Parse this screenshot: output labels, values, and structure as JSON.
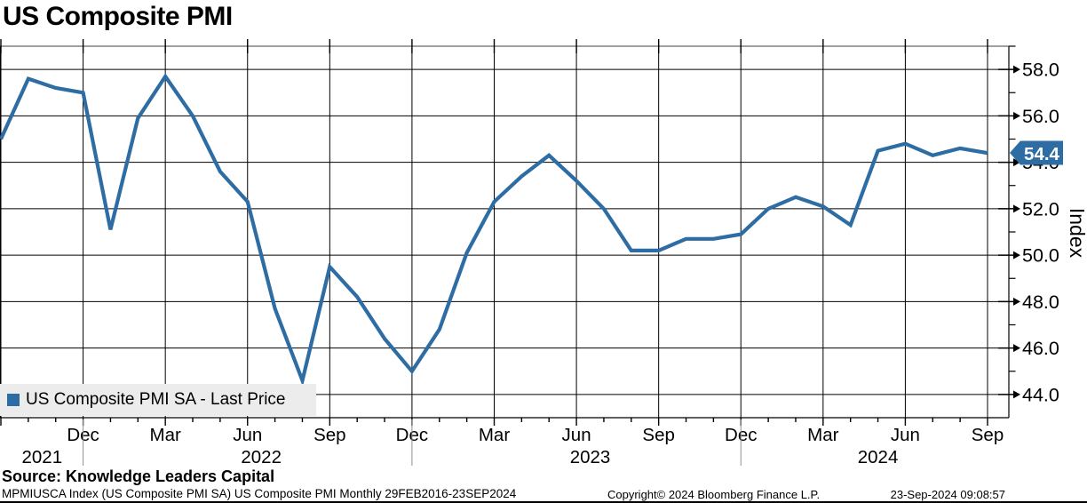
{
  "title": "US Composite PMI",
  "legend": {
    "label": "US Composite PMI SA - Last Price"
  },
  "y_axis": {
    "title": "Index",
    "tick_labels": [
      "58.0",
      "56.0",
      "54.0",
      "52.0",
      "50.0",
      "48.0",
      "46.0",
      "44.0"
    ],
    "last_price_badge": "54.4"
  },
  "x_axis": {
    "quarter_labels": [
      {
        "month_index": 3,
        "label": "Dec"
      },
      {
        "month_index": 6,
        "label": "Mar"
      },
      {
        "month_index": 9,
        "label": "Jun"
      },
      {
        "month_index": 12,
        "label": "Sep"
      },
      {
        "month_index": 15,
        "label": "Dec"
      },
      {
        "month_index": 18,
        "label": "Mar"
      },
      {
        "month_index": 21,
        "label": "Jun"
      },
      {
        "month_index": 24,
        "label": "Sep"
      },
      {
        "month_index": 27,
        "label": "Dec"
      },
      {
        "month_index": 30,
        "label": "Mar"
      },
      {
        "month_index": 33,
        "label": "Jun"
      },
      {
        "month_index": 36,
        "label": "Sep"
      }
    ],
    "year_labels": [
      {
        "center_month_index": 1.5,
        "label": "2021"
      },
      {
        "center_month_index": 9.5,
        "label": "2022"
      },
      {
        "center_month_index": 21.5,
        "label": "2023"
      },
      {
        "center_month_index": 32,
        "label": "2024"
      }
    ]
  },
  "footer": {
    "source": "Source: Knowledge Leaders Capital",
    "description": "MPMIUSCA Index (US Composite PMI SA) US Composite PMI  Monthly 29FEB2016-23SEP2024",
    "copyright": "Copyright© 2024 Bloomberg Finance L.P.",
    "timestamp": "23-Sep-2024 09:08:57"
  },
  "colors": {
    "line": "#2d6da4",
    "badge_bg": "#2d6da4",
    "badge_text": "#ffffff",
    "legend_bg": "#ececec",
    "grid": "#000000",
    "year_separator": "#909090"
  },
  "chart_data": {
    "type": "line",
    "title": "US Composite PMI",
    "xlabel": "",
    "ylabel": "Index",
    "ylim": [
      43,
      59
    ],
    "yticks": [
      44,
      46,
      48,
      50,
      52,
      54,
      56,
      58
    ],
    "grid": true,
    "legend_position": "bottom-left",
    "x": [
      "Sep 2021",
      "Oct 2021",
      "Nov 2021",
      "Dec 2021",
      "Jan 2022",
      "Feb 2022",
      "Mar 2022",
      "Apr 2022",
      "May 2022",
      "Jun 2022",
      "Jul 2022",
      "Aug 2022",
      "Sep 2022",
      "Oct 2022",
      "Nov 2022",
      "Dec 2022",
      "Jan 2023",
      "Feb 2023",
      "Mar 2023",
      "Apr 2023",
      "May 2023",
      "Jun 2023",
      "Jul 2023",
      "Aug 2023",
      "Sep 2023",
      "Oct 2023",
      "Nov 2023",
      "Dec 2023",
      "Jan 2024",
      "Feb 2024",
      "Mar 2024",
      "Apr 2024",
      "May 2024",
      "Jun 2024",
      "Jul 2024",
      "Aug 2024",
      "Sep 2024"
    ],
    "series": [
      {
        "name": "US Composite PMI SA - Last Price",
        "values": [
          55.0,
          57.6,
          57.2,
          57.0,
          51.1,
          55.9,
          57.7,
          56.0,
          53.6,
          52.3,
          47.7,
          44.6,
          49.5,
          48.2,
          46.4,
          45.0,
          46.8,
          50.1,
          52.3,
          53.4,
          54.3,
          53.2,
          52.0,
          50.2,
          50.2,
          50.7,
          50.7,
          50.9,
          52.0,
          52.5,
          52.1,
          51.3,
          54.5,
          54.8,
          54.3,
          54.6,
          54.4
        ]
      }
    ],
    "last_value": 54.4
  }
}
